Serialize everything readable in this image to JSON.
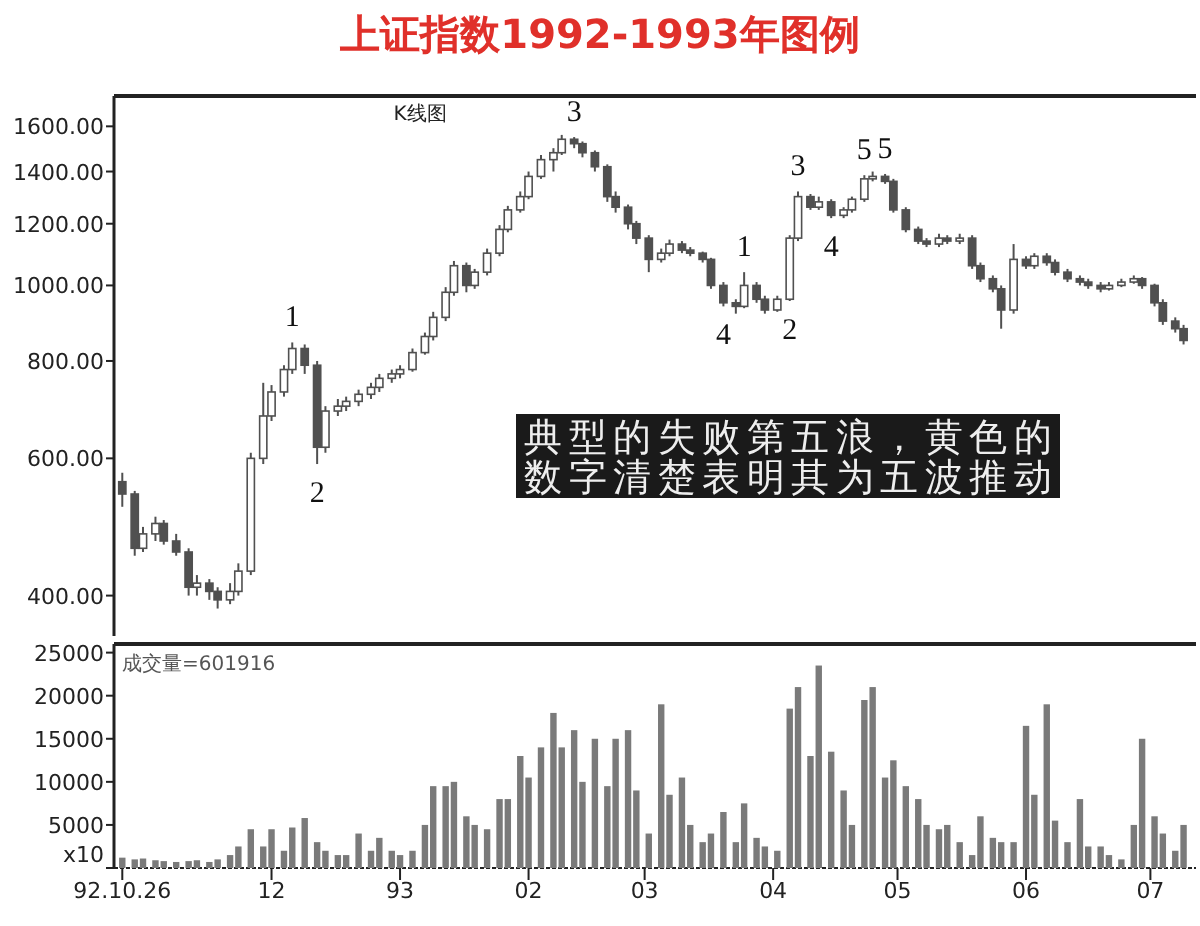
{
  "chart_data": [
    {
      "type": "candlestick",
      "title": "上证指数1992-1993年图例",
      "subtitle": "K线图",
      "color": "#505050",
      "log": true,
      "ylim": [
        355,
        1750
      ],
      "tick_labels": "y",
      "yticks": [
        {
          "value": 400,
          "label": "400.00"
        },
        {
          "value": 600,
          "label": "600.00"
        },
        {
          "value": 800,
          "label": "800.00"
        },
        {
          "value": 1000,
          "label": "1000.00"
        },
        {
          "value": 1200,
          "label": "1200.00"
        },
        {
          "value": 1400,
          "label": "1400.00"
        },
        {
          "value": 1600,
          "label": "1600.00"
        }
      ],
      "xlim": [
        "1992-10-24",
        "1993-07-12"
      ],
      "x": [
        "1992-10-26",
        "1992-10-29",
        "1992-10-31",
        "1992-11-03",
        "1992-11-05",
        "1992-11-08",
        "1992-11-11",
        "1992-11-13",
        "1992-11-16",
        "1992-11-18",
        "1992-11-21",
        "1992-11-23",
        "1992-11-26",
        "1992-11-29",
        "1992-12-01",
        "1992-12-04",
        "1992-12-06",
        "1992-12-09",
        "1992-12-12",
        "1992-12-14",
        "1992-12-17",
        "1992-12-19",
        "1992-12-22",
        "1992-12-25",
        "1992-12-27",
        "1992-12-30",
        "1993-01-01",
        "1993-01-04",
        "1993-01-07",
        "1993-01-09",
        "1993-01-12",
        "1993-01-14",
        "1993-01-17",
        "1993-01-19",
        "1993-01-22",
        "1993-01-25",
        "1993-01-27",
        "1993-01-30",
        "1993-02-01",
        "1993-02-04",
        "1993-02-07",
        "1993-02-09",
        "1993-02-12",
        "1993-02-14",
        "1993-02-17",
        "1993-02-20",
        "1993-02-22",
        "1993-02-25",
        "1993-02-27",
        "1993-03-02",
        "1993-03-05",
        "1993-03-07",
        "1993-03-10",
        "1993-03-12",
        "1993-03-15",
        "1993-03-17",
        "1993-03-20",
        "1993-03-23",
        "1993-03-25",
        "1993-03-28",
        "1993-03-30",
        "1993-04-02",
        "1993-04-05",
        "1993-04-07",
        "1993-04-10",
        "1993-04-12",
        "1993-04-15",
        "1993-04-18",
        "1993-04-20",
        "1993-04-23",
        "1993-04-25",
        "1993-04-28",
        "1993-04-30",
        "1993-05-03",
        "1993-05-06",
        "1993-05-08",
        "1993-05-11",
        "1993-05-13",
        "1993-05-16",
        "1993-05-19",
        "1993-05-21",
        "1993-05-24",
        "1993-05-26",
        "1993-05-29",
        "1993-06-01",
        "1993-06-03",
        "1993-06-06",
        "1993-06-08",
        "1993-06-11",
        "1993-06-14",
        "1993-06-16",
        "1993-06-19",
        "1993-06-21",
        "1993-06-24",
        "1993-06-27",
        "1993-06-29",
        "1993-07-02",
        "1993-07-04",
        "1993-07-07",
        "1993-07-09"
      ],
      "ohlc": [
        [
          560,
          575,
          520,
          540
        ],
        [
          540,
          545,
          450,
          460
        ],
        [
          460,
          490,
          455,
          480
        ],
        [
          480,
          505,
          470,
          495
        ],
        [
          495,
          500,
          465,
          470
        ],
        [
          470,
          480,
          450,
          455
        ],
        [
          455,
          460,
          400,
          410
        ],
        [
          410,
          425,
          400,
          415
        ],
        [
          415,
          420,
          395,
          405
        ],
        [
          405,
          410,
          385,
          395
        ],
        [
          395,
          415,
          390,
          405
        ],
        [
          405,
          440,
          400,
          430
        ],
        [
          430,
          610,
          425,
          600
        ],
        [
          600,
          750,
          590,
          680
        ],
        [
          680,
          745,
          670,
          730
        ],
        [
          730,
          790,
          720,
          780
        ],
        [
          780,
          845,
          770,
          830
        ],
        [
          830,
          840,
          770,
          790
        ],
        [
          790,
          800,
          590,
          620
        ],
        [
          620,
          700,
          610,
          690
        ],
        [
          690,
          715,
          680,
          700
        ],
        [
          700,
          720,
          690,
          710
        ],
        [
          710,
          735,
          700,
          725
        ],
        [
          725,
          750,
          715,
          740
        ],
        [
          740,
          770,
          730,
          760
        ],
        [
          760,
          780,
          750,
          770
        ],
        [
          770,
          790,
          760,
          780
        ],
        [
          780,
          830,
          775,
          820
        ],
        [
          820,
          870,
          815,
          860
        ],
        [
          860,
          925,
          850,
          910
        ],
        [
          910,
          995,
          900,
          980
        ],
        [
          980,
          1075,
          970,
          1060
        ],
        [
          1060,
          1070,
          980,
          1000
        ],
        [
          1000,
          1050,
          990,
          1040
        ],
        [
          1040,
          1115,
          1030,
          1100
        ],
        [
          1100,
          1195,
          1090,
          1180
        ],
        [
          1180,
          1265,
          1170,
          1250
        ],
        [
          1250,
          1320,
          1240,
          1300
        ],
        [
          1300,
          1400,
          1290,
          1380
        ],
        [
          1380,
          1470,
          1370,
          1450
        ],
        [
          1450,
          1500,
          1400,
          1480
        ],
        [
          1480,
          1560,
          1470,
          1540
        ],
        [
          1540,
          1550,
          1500,
          1520
        ],
        [
          1520,
          1530,
          1460,
          1480
        ],
        [
          1480,
          1490,
          1400,
          1420
        ],
        [
          1420,
          1430,
          1280,
          1300
        ],
        [
          1300,
          1320,
          1240,
          1260
        ],
        [
          1260,
          1270,
          1180,
          1200
        ],
        [
          1200,
          1210,
          1130,
          1150
        ],
        [
          1150,
          1160,
          1040,
          1080
        ],
        [
          1080,
          1115,
          1070,
          1100
        ],
        [
          1100,
          1145,
          1090,
          1130
        ],
        [
          1130,
          1140,
          1100,
          1110
        ],
        [
          1110,
          1120,
          1090,
          1100
        ],
        [
          1100,
          1105,
          1070,
          1080
        ],
        [
          1080,
          1085,
          990,
          1000
        ],
        [
          1000,
          1010,
          940,
          950
        ],
        [
          950,
          960,
          920,
          940
        ],
        [
          940,
          1040,
          935,
          1000
        ],
        [
          1000,
          1010,
          950,
          960
        ],
        [
          960,
          970,
          920,
          930
        ],
        [
          930,
          970,
          925,
          960
        ],
        [
          960,
          1160,
          955,
          1150
        ],
        [
          1150,
          1320,
          1140,
          1300
        ],
        [
          1300,
          1310,
          1250,
          1260
        ],
        [
          1260,
          1300,
          1250,
          1280
        ],
        [
          1280,
          1290,
          1220,
          1230
        ],
        [
          1230,
          1260,
          1220,
          1250
        ],
        [
          1250,
          1300,
          1240,
          1290
        ],
        [
          1290,
          1385,
          1280,
          1370
        ],
        [
          1370,
          1400,
          1360,
          1380
        ],
        [
          1380,
          1390,
          1350,
          1360
        ],
        [
          1360,
          1370,
          1240,
          1250
        ],
        [
          1250,
          1260,
          1170,
          1180
        ],
        [
          1180,
          1190,
          1130,
          1140
        ],
        [
          1140,
          1150,
          1120,
          1130
        ],
        [
          1130,
          1165,
          1120,
          1150
        ],
        [
          1150,
          1160,
          1130,
          1140
        ],
        [
          1140,
          1165,
          1130,
          1150
        ],
        [
          1150,
          1160,
          1050,
          1060
        ],
        [
          1060,
          1070,
          1010,
          1020
        ],
        [
          1020,
          1030,
          980,
          990
        ],
        [
          990,
          1000,
          880,
          930
        ],
        [
          930,
          1130,
          920,
          1080
        ],
        [
          1080,
          1090,
          1050,
          1060
        ],
        [
          1060,
          1100,
          1050,
          1090
        ],
        [
          1090,
          1100,
          1060,
          1070
        ],
        [
          1070,
          1080,
          1030,
          1040
        ],
        [
          1040,
          1050,
          1010,
          1020
        ],
        [
          1020,
          1030,
          1000,
          1010
        ],
        [
          1010,
          1020,
          990,
          1000
        ],
        [
          1000,
          1010,
          980,
          990
        ],
        [
          990,
          1010,
          985,
          1000
        ],
        [
          1000,
          1020,
          995,
          1010
        ],
        [
          1010,
          1030,
          1005,
          1020
        ],
        [
          1020,
          1025,
          990,
          1000
        ],
        [
          1000,
          1005,
          940,
          950
        ],
        [
          950,
          960,
          890,
          900
        ],
        [
          900,
          910,
          870,
          880
        ],
        [
          880,
          890,
          840,
          850
        ]
      ],
      "annotations": [
        {
          "text": "1",
          "x": "1992-12-06",
          "y": 845
        },
        {
          "text": "2",
          "x": "1992-12-12",
          "y": 590
        },
        {
          "text": "3",
          "x": "1993-02-12",
          "y": 1550
        },
        {
          "text": "4",
          "x": "1993-03-20",
          "y": 940
        },
        {
          "text": "1",
          "x": "1993-03-25",
          "y": 1040
        },
        {
          "text": "2",
          "x": "1993-04-05",
          "y": 955
        },
        {
          "text": "3",
          "x": "1993-04-07",
          "y": 1320
        },
        {
          "text": "4",
          "x": "1993-04-15",
          "y": 1220
        },
        {
          "text": "5",
          "x": "1993-04-23",
          "y": 1385
        },
        {
          "text": "5",
          "x": "1993-04-28",
          "y": 1390
        },
        "典型的失败第五浪，黄色的数字清楚表明其为五波推动"
      ]
    },
    {
      "type": "bar",
      "color": "#7a7a7a",
      "ylim": [
        0,
        26000
      ],
      "yticks": [
        {
          "value": 0,
          "label": "x10"
        },
        5000,
        10000,
        15000,
        20000,
        25000
      ],
      "xlim": [
        "1992-10-24",
        "1993-07-12"
      ],
      "xticks": [
        {
          "value": "1992-10-26",
          "label": "92.10.26"
        },
        {
          "value": "1992-12-01",
          "label": "12"
        },
        {
          "value": "1993-01-01",
          "label": "93"
        },
        {
          "value": "1993-02-01",
          "label": "02"
        },
        {
          "value": "1993-03-01",
          "label": "03"
        },
        {
          "value": "1993-04-01",
          "label": "04"
        },
        {
          "value": "1993-05-01",
          "label": "05"
        },
        {
          "value": "1993-06-01",
          "label": "06"
        },
        {
          "value": "1993-07-01",
          "label": "07"
        }
      ],
      "x": [
        "1992-10-26",
        "1992-10-29",
        "1992-10-31",
        "1992-11-03",
        "1992-11-05",
        "1992-11-08",
        "1992-11-11",
        "1992-11-13",
        "1992-11-16",
        "1992-11-18",
        "1992-11-21",
        "1992-11-23",
        "1992-11-26",
        "1992-11-29",
        "1992-12-01",
        "1992-12-04",
        "1992-12-06",
        "1992-12-09",
        "1992-12-12",
        "1992-12-14",
        "1992-12-17",
        "1992-12-19",
        "1992-12-22",
        "1992-12-25",
        "1992-12-27",
        "1992-12-30",
        "1993-01-01",
        "1993-01-04",
        "1993-01-07",
        "1993-01-09",
        "1993-01-12",
        "1993-01-14",
        "1993-01-17",
        "1993-01-19",
        "1993-01-22",
        "1993-01-25",
        "1993-01-27",
        "1993-01-30",
        "1993-02-01",
        "1993-02-04",
        "1993-02-07",
        "1993-02-09",
        "1993-02-12",
        "1993-02-14",
        "1993-02-17",
        "1993-02-20",
        "1993-02-22",
        "1993-02-25",
        "1993-02-27",
        "1993-03-02",
        "1993-03-05",
        "1993-03-07",
        "1993-03-10",
        "1993-03-12",
        "1993-03-15",
        "1993-03-17",
        "1993-03-20",
        "1993-03-23",
        "1993-03-25",
        "1993-03-28",
        "1993-03-30",
        "1993-04-02",
        "1993-04-05",
        "1993-04-07",
        "1993-04-10",
        "1993-04-12",
        "1993-04-15",
        "1993-04-18",
        "1993-04-20",
        "1993-04-23",
        "1993-04-25",
        "1993-04-28",
        "1993-04-30",
        "1993-05-03",
        "1993-05-06",
        "1993-05-08",
        "1993-05-11",
        "1993-05-13",
        "1993-05-16",
        "1993-05-19",
        "1993-05-21",
        "1993-05-24",
        "1993-05-26",
        "1993-05-29",
        "1993-06-01",
        "1993-06-03",
        "1993-06-06",
        "1993-06-08",
        "1993-06-11",
        "1993-06-14",
        "1993-06-16",
        "1993-06-19",
        "1993-06-21",
        "1993-06-24",
        "1993-06-27",
        "1993-06-29",
        "1993-07-02",
        "1993-07-04",
        "1993-07-07",
        "1993-07-09"
      ],
      "values": [
        1200,
        1000,
        1100,
        900,
        800,
        700,
        800,
        900,
        700,
        1000,
        1500,
        2500,
        4500,
        2500,
        4500,
        2000,
        4700,
        5800,
        3000,
        2000,
        1500,
        1500,
        4000,
        2000,
        3500,
        2000,
        1500,
        2000,
        5000,
        9500,
        9500,
        10000,
        6000,
        5000,
        4500,
        8000,
        8000,
        13000,
        10500,
        14000,
        18000,
        14000,
        16000,
        10000,
        15000,
        9500,
        15000,
        16000,
        9000,
        4000,
        19000,
        8500,
        10500,
        5000,
        3000,
        4000,
        6500,
        3000,
        7500,
        3500,
        2500,
        2000,
        18500,
        21000,
        13000,
        23500,
        13500,
        9000,
        5000,
        19500,
        21000,
        10500,
        12500,
        9500,
        8000,
        5000,
        4500,
        5000,
        3000,
        1500,
        6000,
        3500,
        3000,
        3000,
        16500,
        8500,
        19000,
        5500,
        3000,
        8000,
        2500,
        2500,
        1500,
        1000,
        5000,
        15000,
        6000,
        4000,
        2000,
        5000
      ],
      "annotations": [
        "成交量=601916"
      ]
    }
  ]
}
